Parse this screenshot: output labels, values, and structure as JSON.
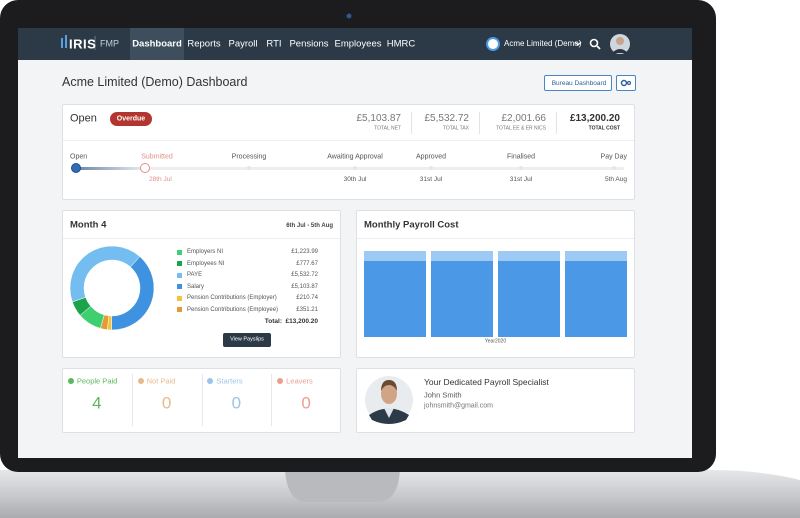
{
  "nav": {
    "logo": "IRIS",
    "product": "FMP",
    "items": [
      "Dashboard",
      "Reports",
      "Payroll",
      "RTI",
      "Pensions",
      "Employees",
      "HMRC"
    ],
    "company": "Acme Limited (Demo)"
  },
  "header": {
    "title": "Acme Limited (Demo) Dashboard",
    "button": "Bureau Dashboard"
  },
  "status": {
    "state": "Open",
    "badge": "Overdue",
    "totals": [
      {
        "amount": "£5,103.87",
        "label": "TOTAL NET"
      },
      {
        "amount": "£5,532.72",
        "label": "TOTAL TAX"
      },
      {
        "amount": "£2,001.66",
        "label": "TOTAL EE & ER NICS"
      },
      {
        "amount": "£13,200.20",
        "label": "TOTAL COST"
      }
    ]
  },
  "timeline": {
    "steps": [
      {
        "label": "Open"
      },
      {
        "label": "Submitted",
        "date": "28th Jul"
      },
      {
        "label": "Processing"
      },
      {
        "label": "Awaiting Approval",
        "date": "30th Jul"
      },
      {
        "label": "Approved",
        "date": "31st Jul"
      },
      {
        "label": "Finalised",
        "date": "31st Jul"
      },
      {
        "label": "Pay Day",
        "date": "5th Aug"
      }
    ]
  },
  "month": {
    "title": "Month 4",
    "period": "6th Jul - 5th Aug",
    "donut": {
      "type": "pie",
      "categories": [
        "Employers NI",
        "Employees NI",
        "PAYE",
        "Salary",
        "Pension Contributions (Employer)",
        "Pension Contributions (Employee)"
      ],
      "values": [
        1223.99,
        777.67,
        5532.72,
        5103.87,
        210.74,
        351.21
      ],
      "value_labels": [
        "£1,223.99",
        "£777.67",
        "£5,532.72",
        "£5,103.87",
        "£210.74",
        "£351.21"
      ],
      "colors": [
        "#3ecf6e",
        "#1ba34b",
        "#74bdf0",
        "#3f92e0",
        "#f2c43c",
        "#e59b35"
      ]
    },
    "total_label": "Total:",
    "total": "£13,200.20",
    "button": "View Payslips"
  },
  "payroll_cost": {
    "title": "Monthly Payroll Cost",
    "type": "bar",
    "x_label": "Year2020",
    "values": [
      13200.2,
      13200.2,
      13200.2,
      13200.2
    ],
    "color": "#4a98e6"
  },
  "stats": [
    {
      "label": "People Paid",
      "value": "4",
      "color": "#5cb85c"
    },
    {
      "label": "Not Paid",
      "value": "0",
      "color": "#e9b98c"
    },
    {
      "label": "Starters",
      "value": "0",
      "color": "#9cc3e8"
    },
    {
      "label": "Leavers",
      "value": "0",
      "color": "#ea9e90"
    }
  ],
  "specialist": {
    "heading": "Your Dedicated Payroll Specialist",
    "name": "John Smith",
    "email": "johnsmith@gmail.com"
  }
}
